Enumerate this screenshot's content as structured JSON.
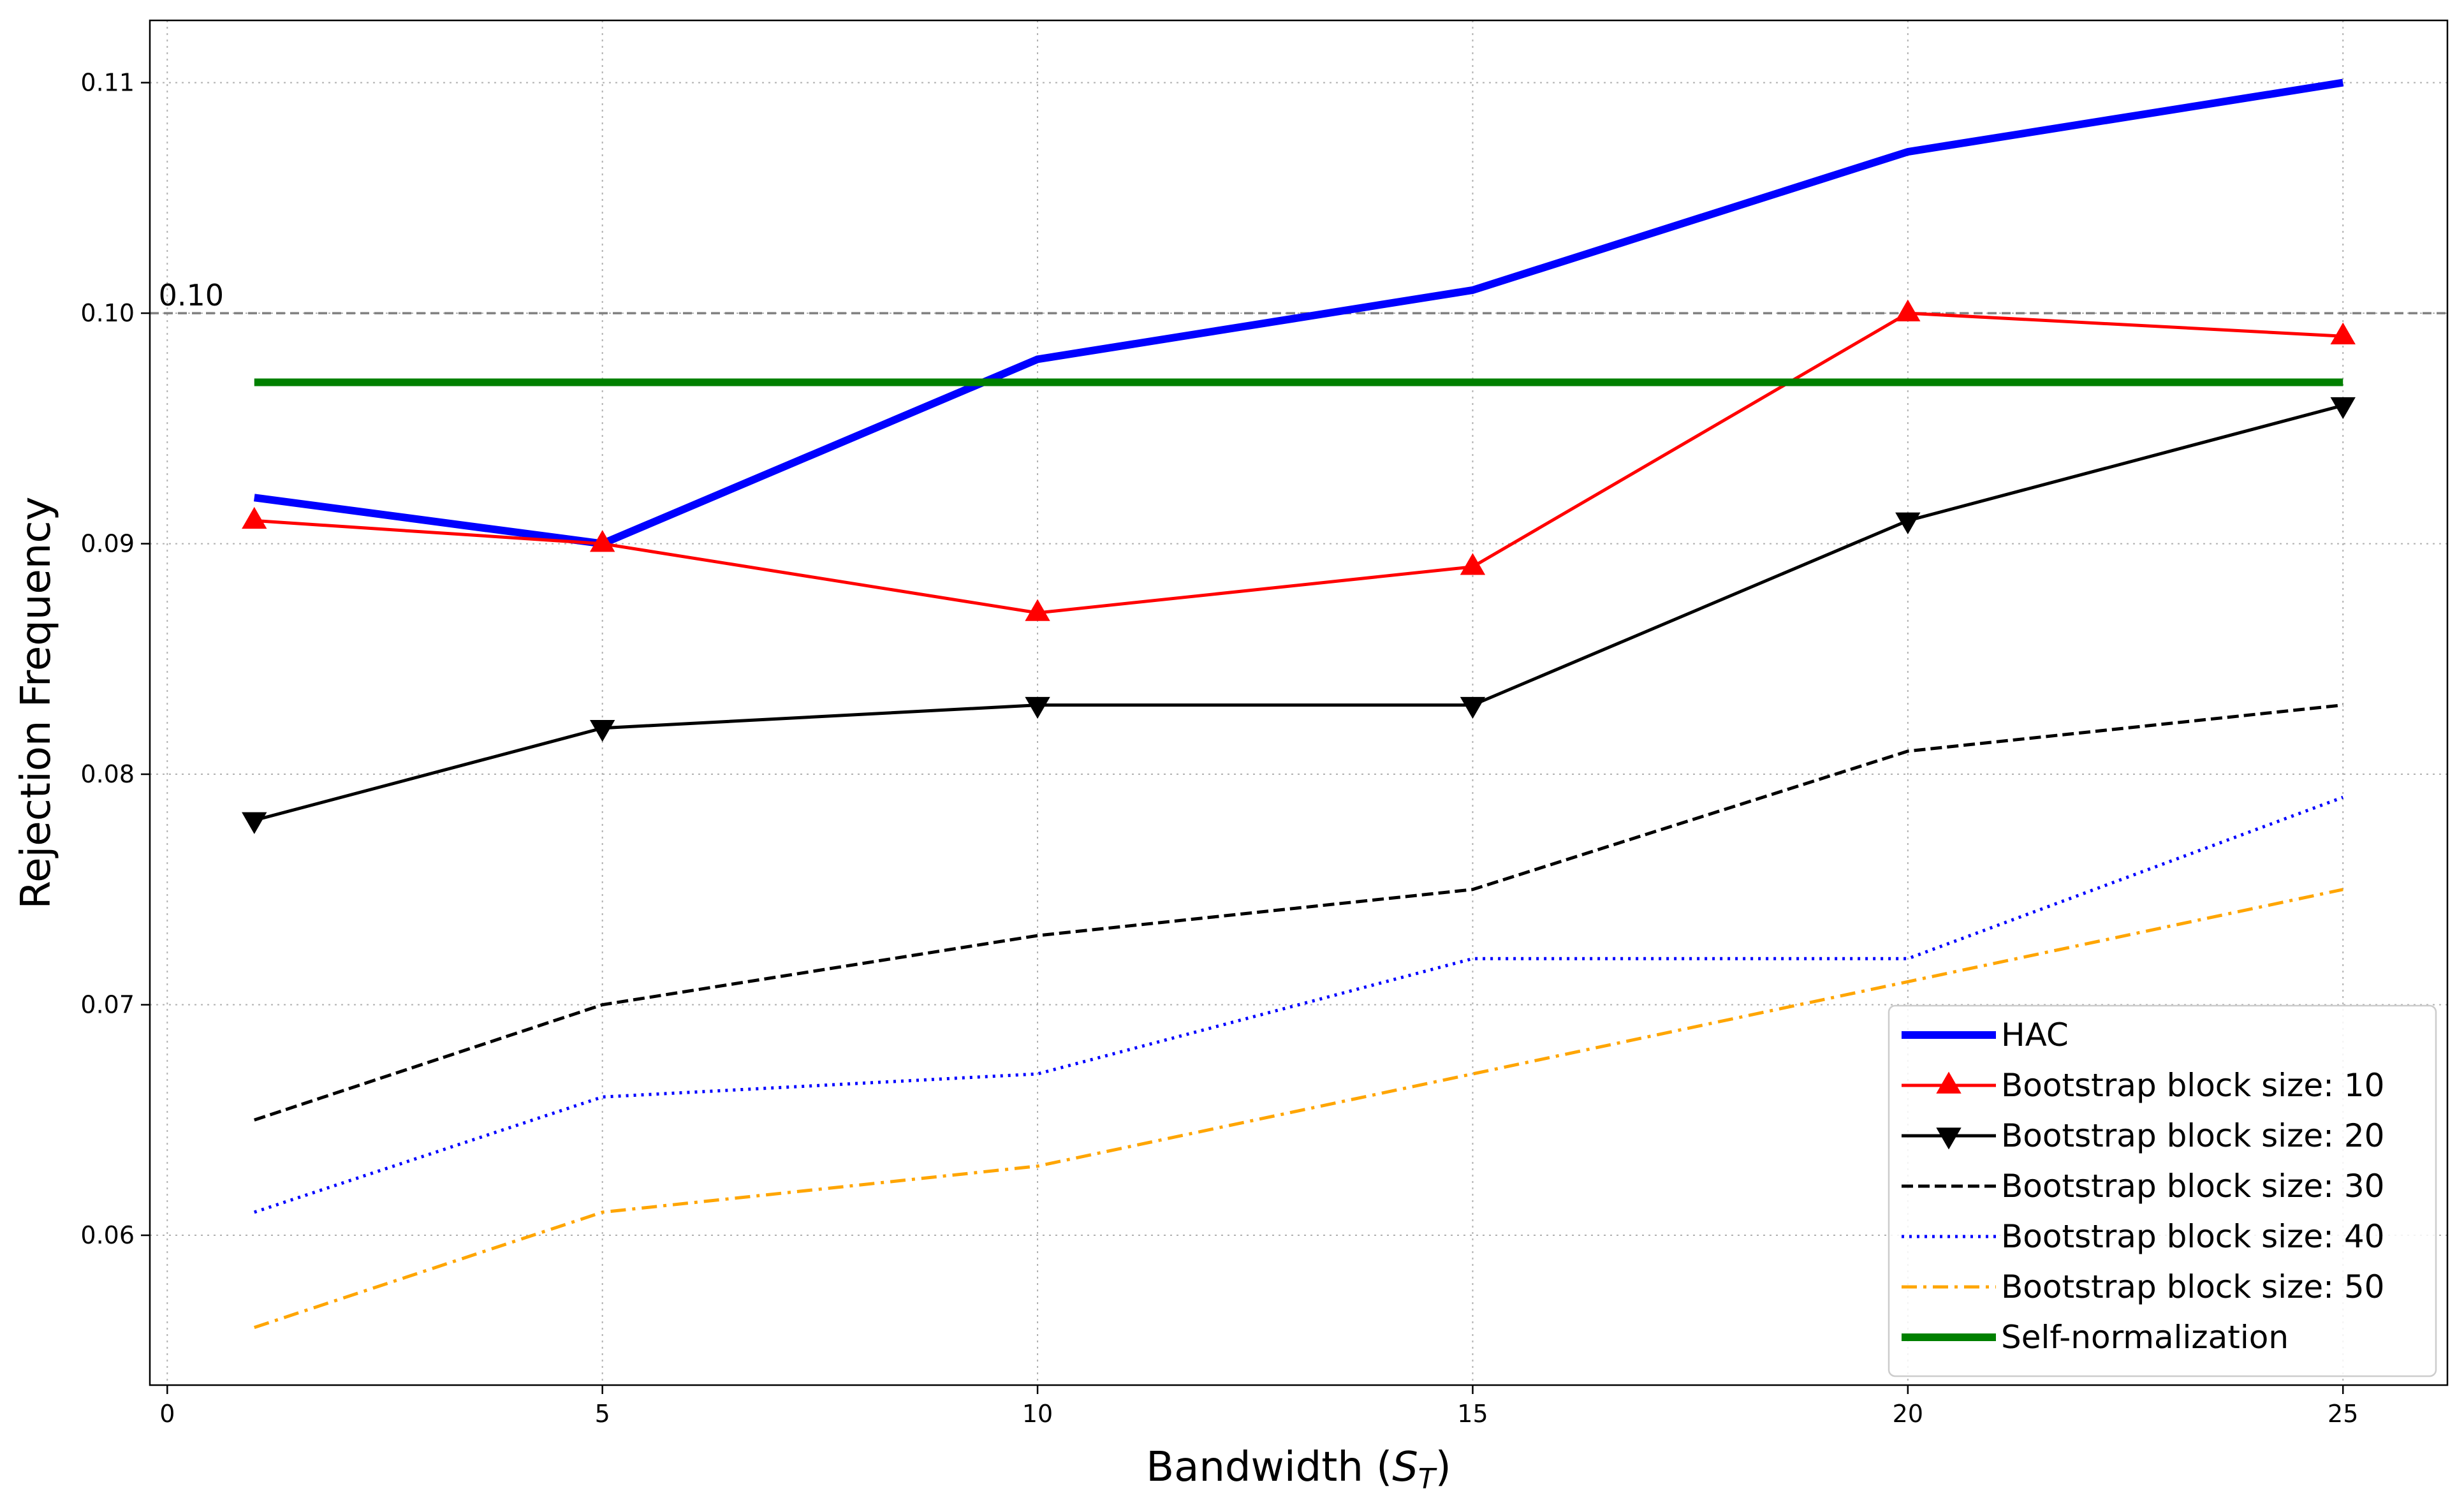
{
  "chart_data": {
    "type": "line",
    "xlabel_main": "Bandwidth (",
    "xlabel_symbol": "S",
    "xlabel_subscript": "T",
    "xlabel_close": ")",
    "ylabel": "Rejection Frequency",
    "xlim": [
      -0.2,
      26.2
    ],
    "ylim": [
      0.0535,
      0.1127
    ],
    "xticks": [
      0,
      5,
      10,
      15,
      20,
      25
    ],
    "yticks": [
      0.06,
      0.07,
      0.08,
      0.09,
      0.1,
      0.11
    ],
    "ytick_labels": [
      "0.06",
      "0.07",
      "0.08",
      "0.09",
      "0.10",
      "0.11"
    ],
    "grid": true,
    "legend_position": "lower-right",
    "reference_line": {
      "y": 0.1,
      "label": "0.10",
      "color": "#808080"
    },
    "x": [
      1,
      5,
      10,
      15,
      20,
      25
    ],
    "series": [
      {
        "name": "HAC",
        "values": [
          0.092,
          0.09,
          0.098,
          0.101,
          0.107,
          0.11
        ],
        "color": "#0000ff",
        "style": "solid",
        "width": "thick",
        "marker": "none"
      },
      {
        "name": "Bootstrap block size: 10",
        "values": [
          0.091,
          0.09,
          0.087,
          0.089,
          0.1,
          0.099
        ],
        "color": "#ff0000",
        "style": "solid",
        "width": "normal",
        "marker": "triangle-up"
      },
      {
        "name": "Bootstrap block size: 20",
        "values": [
          0.078,
          0.082,
          0.083,
          0.083,
          0.091,
          0.096
        ],
        "color": "#000000",
        "style": "solid",
        "width": "normal",
        "marker": "triangle-down"
      },
      {
        "name": "Bootstrap block size: 30",
        "values": [
          0.065,
          0.07,
          0.073,
          0.075,
          0.081,
          0.083
        ],
        "color": "#000000",
        "style": "dashed",
        "width": "normal",
        "marker": "none"
      },
      {
        "name": "Bootstrap block size: 40",
        "values": [
          0.061,
          0.066,
          0.067,
          0.072,
          0.072,
          0.079
        ],
        "color": "#0000ff",
        "style": "dotted",
        "width": "normal",
        "marker": "none"
      },
      {
        "name": "Bootstrap block size: 50",
        "values": [
          0.056,
          0.061,
          0.063,
          0.067,
          0.071,
          0.075
        ],
        "color": "#ffa500",
        "style": "dashdot",
        "width": "normal",
        "marker": "none"
      },
      {
        "name": "Self-normalization",
        "values": [
          0.097,
          0.097,
          0.097,
          0.097,
          0.097,
          0.097
        ],
        "color": "#008000",
        "style": "solid",
        "width": "thick",
        "marker": "none"
      }
    ]
  }
}
